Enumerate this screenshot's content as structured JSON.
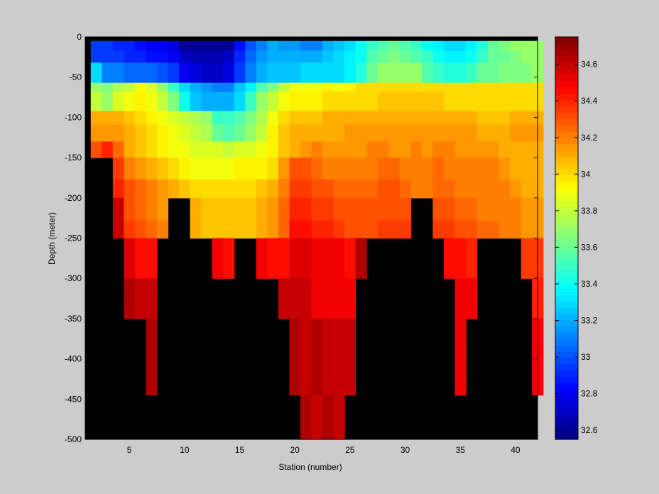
{
  "chart_data": {
    "type": "heatmap",
    "title": "",
    "xlabel": "Station (number)",
    "ylabel": "Depth (meter)",
    "xlim": [
      1,
      42
    ],
    "ylim": [
      -500,
      0
    ],
    "x_ticks": [
      5,
      10,
      15,
      20,
      25,
      30,
      35,
      40
    ],
    "y_ticks": [
      0,
      -50,
      -100,
      -150,
      -200,
      -250,
      -300,
      -350,
      -400,
      -450,
      -500
    ],
    "x_tick_labels": [
      "5",
      "10",
      "15",
      "20",
      "25",
      "30",
      "35",
      "40"
    ],
    "y_tick_labels": [
      "0",
      "-50",
      "-100",
      "-150",
      "-200",
      "-250",
      "-300",
      "-350",
      "-400",
      "-450",
      "-500"
    ],
    "colorbar": {
      "colormap": "jet",
      "range": [
        32.55,
        34.75
      ],
      "ticks": [
        32.6,
        32.8,
        33,
        33.2,
        33.4,
        33.6,
        33.8,
        34,
        34.2,
        34.4,
        34.6
      ],
      "tick_labels": [
        "32.6",
        "32.8",
        "33",
        "33.2",
        "33.4",
        "33.6",
        "33.8",
        "34",
        "34.2",
        "34.4",
        "34.6"
      ]
    },
    "no_data_color": "#000000",
    "stations": [
      2,
      3,
      4,
      5,
      6,
      7,
      8,
      9,
      10,
      11,
      12,
      13,
      14,
      15,
      16,
      17,
      18,
      19,
      20,
      21,
      22,
      23,
      24,
      25,
      26,
      27,
      28,
      29,
      30,
      31,
      32,
      33,
      34,
      35,
      36,
      37,
      38,
      39,
      40,
      41,
      42
    ],
    "depths": [
      -10,
      -25,
      -45,
      -62,
      -80,
      -100,
      -120,
      -140,
      -165,
      -185,
      -215,
      -235,
      -270,
      -290,
      -320,
      -340,
      -375,
      -390,
      -425,
      -450,
      -480,
      -495
    ],
    "depth_bin_edges": [
      -5,
      -17,
      -32,
      -57,
      -68,
      -92,
      -109,
      -130,
      -150,
      -177,
      -200,
      -228,
      -250,
      -285,
      -300,
      -335,
      -350,
      -385,
      -400,
      -445,
      -460,
      -485,
      -500
    ],
    "salinity": [
      [
        32.95,
        32.95,
        32.9,
        32.9,
        32.85,
        32.8,
        32.8,
        32.75,
        32.6,
        32.6,
        32.6,
        32.6,
        32.6,
        32.85,
        33.0,
        33.1,
        33.2,
        33.15,
        33.15,
        33.1,
        33.1,
        33.2,
        33.25,
        33.3,
        33.4,
        33.5,
        33.55,
        33.6,
        33.55,
        33.5,
        33.4,
        33.35,
        33.3,
        33.3,
        33.35,
        33.45,
        33.6,
        33.65,
        33.7,
        33.7,
        33.7
      ],
      [
        32.95,
        32.95,
        32.95,
        32.9,
        32.9,
        32.85,
        32.85,
        32.8,
        32.7,
        32.65,
        32.65,
        32.65,
        32.7,
        32.9,
        33.05,
        33.15,
        33.2,
        33.2,
        33.2,
        33.2,
        33.2,
        33.25,
        33.3,
        33.35,
        33.4,
        33.55,
        33.6,
        33.65,
        33.6,
        33.55,
        33.5,
        33.4,
        33.35,
        33.35,
        33.4,
        33.5,
        33.6,
        33.6,
        33.65,
        33.7,
        33.7
      ],
      [
        33.3,
        33.1,
        33.1,
        33.05,
        33.05,
        33.05,
        33.0,
        32.95,
        32.8,
        32.75,
        32.7,
        32.7,
        32.75,
        32.95,
        33.1,
        33.2,
        33.25,
        33.25,
        33.25,
        33.3,
        33.3,
        33.3,
        33.3,
        33.35,
        33.45,
        33.6,
        33.7,
        33.7,
        33.7,
        33.7,
        33.55,
        33.5,
        33.45,
        33.45,
        33.5,
        33.6,
        33.6,
        33.65,
        33.65,
        33.65,
        33.7
      ],
      [
        33.7,
        33.65,
        33.75,
        33.8,
        33.9,
        33.85,
        33.7,
        33.5,
        33.3,
        33.2,
        33.15,
        33.1,
        33.1,
        33.25,
        33.35,
        33.55,
        33.65,
        33.8,
        33.9,
        33.9,
        33.9,
        33.95,
        33.9,
        33.95,
        34.0,
        34.0,
        34.0,
        34.0,
        34.0,
        34.0,
        34.0,
        34.0,
        34.0,
        34.0,
        34.0,
        34.0,
        34.0,
        34.0,
        34.0,
        34.0,
        34.0
      ],
      [
        33.8,
        33.7,
        33.85,
        33.9,
        33.95,
        33.9,
        33.8,
        33.65,
        33.4,
        33.25,
        33.2,
        33.2,
        33.2,
        33.3,
        33.5,
        33.7,
        33.8,
        33.9,
        33.95,
        33.95,
        33.95,
        34.0,
        34.0,
        34.0,
        34.0,
        34.0,
        34.05,
        34.05,
        34.05,
        34.05,
        34.05,
        34.05,
        34.0,
        34.0,
        34.0,
        34.0,
        34.0,
        34.0,
        34.0,
        34.0,
        34.0
      ],
      [
        34.1,
        34.1,
        34.1,
        34.05,
        34.0,
        33.95,
        33.9,
        33.85,
        33.8,
        33.75,
        33.7,
        33.5,
        33.5,
        33.55,
        33.65,
        33.75,
        33.9,
        34.0,
        34.05,
        34.05,
        34.05,
        34.1,
        34.1,
        34.1,
        34.1,
        34.1,
        34.1,
        34.1,
        34.1,
        34.1,
        34.1,
        34.1,
        34.1,
        34.1,
        34.1,
        34.05,
        34.05,
        34.05,
        34.1,
        34.1,
        34.1
      ],
      [
        34.15,
        34.15,
        34.15,
        34.1,
        34.05,
        34.0,
        33.95,
        33.9,
        33.85,
        33.8,
        33.75,
        33.6,
        33.55,
        33.6,
        33.7,
        33.8,
        33.95,
        34.05,
        34.1,
        34.1,
        34.1,
        34.1,
        34.1,
        34.15,
        34.15,
        34.15,
        34.15,
        34.15,
        34.15,
        34.15,
        34.15,
        34.15,
        34.15,
        34.15,
        34.15,
        34.1,
        34.1,
        34.1,
        34.15,
        34.15,
        34.15
      ],
      [
        34.3,
        34.4,
        34.25,
        34.1,
        34.05,
        34.0,
        33.95,
        33.9,
        33.9,
        33.85,
        33.85,
        33.85,
        33.8,
        33.85,
        33.85,
        33.9,
        33.95,
        34.05,
        34.1,
        34.15,
        34.2,
        34.15,
        34.15,
        34.15,
        34.15,
        34.2,
        34.2,
        34.15,
        34.15,
        34.2,
        34.15,
        34.2,
        34.2,
        34.15,
        34.15,
        34.15,
        34.15,
        34.1,
        34.1,
        34.1,
        34.1
      ],
      [
        null,
        null,
        34.35,
        34.2,
        34.15,
        34.1,
        34.05,
        34.0,
        33.95,
        33.9,
        33.9,
        33.9,
        33.9,
        33.95,
        33.95,
        33.95,
        34.0,
        34.15,
        34.3,
        34.3,
        34.25,
        34.2,
        34.2,
        34.2,
        34.2,
        34.2,
        34.25,
        34.25,
        34.2,
        34.2,
        34.2,
        34.25,
        34.2,
        34.2,
        34.2,
        34.2,
        34.2,
        34.15,
        34.1,
        34.1,
        34.1
      ],
      [
        null,
        null,
        34.4,
        34.3,
        34.25,
        34.2,
        34.15,
        34.1,
        34.05,
        34.0,
        34.0,
        34.0,
        34.0,
        34.0,
        34.0,
        34.05,
        34.1,
        34.2,
        34.35,
        34.35,
        34.3,
        34.3,
        34.25,
        34.25,
        34.25,
        34.25,
        34.3,
        34.3,
        34.25,
        34.2,
        34.2,
        34.25,
        34.25,
        34.2,
        34.2,
        34.2,
        34.2,
        34.2,
        34.15,
        34.1,
        34.1
      ],
      [
        null,
        null,
        34.6,
        34.3,
        34.25,
        34.2,
        34.15,
        null,
        null,
        34.1,
        34.05,
        34.05,
        34.05,
        34.05,
        34.05,
        34.1,
        34.15,
        34.25,
        34.4,
        34.4,
        34.35,
        34.35,
        34.3,
        34.3,
        34.3,
        34.3,
        34.3,
        34.3,
        34.3,
        null,
        null,
        34.3,
        34.3,
        34.25,
        34.25,
        34.2,
        34.2,
        34.2,
        34.2,
        34.15,
        34.15
      ],
      [
        null,
        null,
        34.6,
        34.35,
        34.3,
        34.25,
        34.2,
        null,
        null,
        34.1,
        34.05,
        34.05,
        34.05,
        34.05,
        34.05,
        34.1,
        34.15,
        34.25,
        34.45,
        34.45,
        34.4,
        34.4,
        34.35,
        34.3,
        34.3,
        34.3,
        34.35,
        34.35,
        34.35,
        null,
        null,
        34.35,
        34.35,
        34.3,
        34.3,
        34.25,
        34.25,
        34.2,
        34.2,
        34.15,
        34.15
      ],
      [
        null,
        null,
        null,
        34.55,
        34.45,
        34.45,
        null,
        null,
        null,
        null,
        null,
        34.5,
        34.45,
        null,
        null,
        34.5,
        34.45,
        34.45,
        34.55,
        34.55,
        34.5,
        34.5,
        34.5,
        34.45,
        34.65,
        null,
        null,
        null,
        null,
        null,
        null,
        null,
        34.45,
        34.45,
        34.4,
        null,
        null,
        null,
        null,
        34.35,
        34.35
      ],
      [
        null,
        null,
        null,
        34.55,
        34.45,
        34.45,
        null,
        null,
        null,
        null,
        null,
        34.5,
        34.45,
        null,
        null,
        34.5,
        34.45,
        34.45,
        34.55,
        34.55,
        34.5,
        34.5,
        34.5,
        34.45,
        34.65,
        null,
        null,
        null,
        null,
        null,
        null,
        null,
        34.45,
        34.45,
        34.4,
        null,
        null,
        null,
        null,
        34.35,
        34.35
      ],
      [
        null,
        null,
        null,
        34.65,
        34.6,
        34.6,
        null,
        null,
        null,
        null,
        null,
        null,
        null,
        null,
        null,
        null,
        null,
        34.6,
        34.6,
        34.6,
        34.5,
        34.5,
        34.5,
        34.5,
        null,
        null,
        null,
        null,
        null,
        null,
        null,
        null,
        null,
        34.5,
        34.5,
        null,
        null,
        null,
        null,
        null,
        34.4
      ],
      [
        null,
        null,
        null,
        34.65,
        34.6,
        34.6,
        null,
        null,
        null,
        null,
        null,
        null,
        null,
        null,
        null,
        null,
        null,
        34.6,
        34.6,
        34.6,
        34.5,
        34.5,
        34.5,
        34.5,
        null,
        null,
        null,
        null,
        null,
        null,
        null,
        null,
        null,
        34.5,
        34.5,
        null,
        null,
        null,
        null,
        null,
        34.4
      ],
      [
        null,
        null,
        null,
        null,
        null,
        34.65,
        null,
        null,
        null,
        null,
        null,
        null,
        null,
        null,
        null,
        null,
        null,
        null,
        34.65,
        34.6,
        34.65,
        34.6,
        34.6,
        34.6,
        null,
        null,
        null,
        null,
        null,
        null,
        null,
        null,
        null,
        34.5,
        null,
        null,
        null,
        null,
        null,
        null,
        34.5
      ],
      [
        null,
        null,
        null,
        null,
        null,
        34.65,
        null,
        null,
        null,
        null,
        null,
        null,
        null,
        null,
        null,
        null,
        null,
        null,
        34.65,
        34.6,
        34.65,
        34.6,
        34.6,
        34.6,
        null,
        null,
        null,
        null,
        null,
        null,
        null,
        null,
        null,
        34.5,
        null,
        null,
        null,
        null,
        null,
        null,
        34.5
      ],
      [
        null,
        null,
        null,
        null,
        null,
        34.65,
        null,
        null,
        null,
        null,
        null,
        null,
        null,
        null,
        null,
        null,
        null,
        null,
        34.65,
        34.6,
        34.65,
        34.6,
        34.6,
        34.6,
        null,
        null,
        null,
        null,
        null,
        null,
        null,
        null,
        null,
        34.5,
        null,
        null,
        null,
        null,
        null,
        null,
        34.5
      ],
      [
        null,
        null,
        null,
        null,
        null,
        null,
        null,
        null,
        null,
        null,
        null,
        null,
        null,
        null,
        null,
        null,
        null,
        null,
        null,
        34.65,
        34.6,
        34.65,
        34.6,
        null,
        null,
        null,
        null,
        null,
        null,
        null,
        null,
        null,
        null,
        null,
        null,
        null,
        null,
        null,
        null,
        null,
        null
      ],
      [
        null,
        null,
        null,
        null,
        null,
        null,
        null,
        null,
        null,
        null,
        null,
        null,
        null,
        null,
        null,
        null,
        null,
        null,
        null,
        34.65,
        34.6,
        34.65,
        34.6,
        null,
        null,
        null,
        null,
        null,
        null,
        null,
        null,
        null,
        null,
        null,
        null,
        null,
        null,
        null,
        null,
        null,
        null
      ],
      [
        null,
        null,
        null,
        null,
        null,
        null,
        null,
        null,
        null,
        null,
        null,
        null,
        null,
        null,
        null,
        null,
        null,
        null,
        null,
        34.65,
        34.6,
        34.65,
        34.6,
        null,
        null,
        null,
        null,
        null,
        null,
        null,
        null,
        null,
        null,
        null,
        null,
        null,
        null,
        null,
        null,
        null,
        null
      ]
    ]
  }
}
